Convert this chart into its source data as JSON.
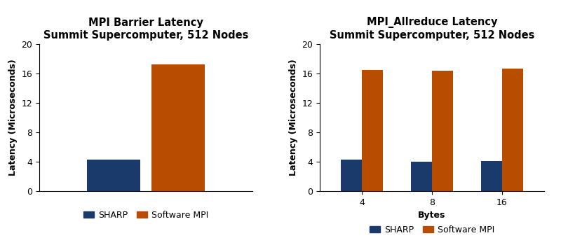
{
  "chart1": {
    "title": "MPI Barrier Latency\nSummit Supercomputer, 512 Nodes",
    "ylabel": "Latency (Microseconds)",
    "ylim": [
      0,
      20
    ],
    "yticks": [
      0,
      4,
      8,
      12,
      16,
      20
    ],
    "sharp_value": 4.3,
    "software_mpi_value": 17.2,
    "bar_color_sharp": "#1a3a6b",
    "bar_color_software": "#b84c00",
    "bar_positions": [
      0.35,
      0.65
    ],
    "bar_width": 0.25,
    "xlim": [
      0.0,
      1.0
    ]
  },
  "chart2": {
    "title": "MPI_Allreduce Latency\nSummit Supercomputer, 512 Nodes",
    "ylabel": "Latency (Microseconds)",
    "xlabel": "Bytes",
    "ylim": [
      0,
      20
    ],
    "yticks": [
      0,
      4,
      8,
      12,
      16,
      20
    ],
    "categories": [
      "4",
      "8",
      "16"
    ],
    "sharp_values": [
      4.3,
      4.0,
      4.1
    ],
    "software_mpi_values": [
      16.5,
      16.4,
      16.7
    ],
    "bar_color_sharp": "#1a3a6b",
    "bar_color_software": "#b84c00",
    "bar_width": 0.3
  },
  "legend_sharp_label": "SHARP",
  "legend_software_label": "Software MPI",
  "title_fontsize": 10.5,
  "label_fontsize": 9,
  "tick_fontsize": 9,
  "legend_fontsize": 9,
  "background_color": "#ffffff"
}
